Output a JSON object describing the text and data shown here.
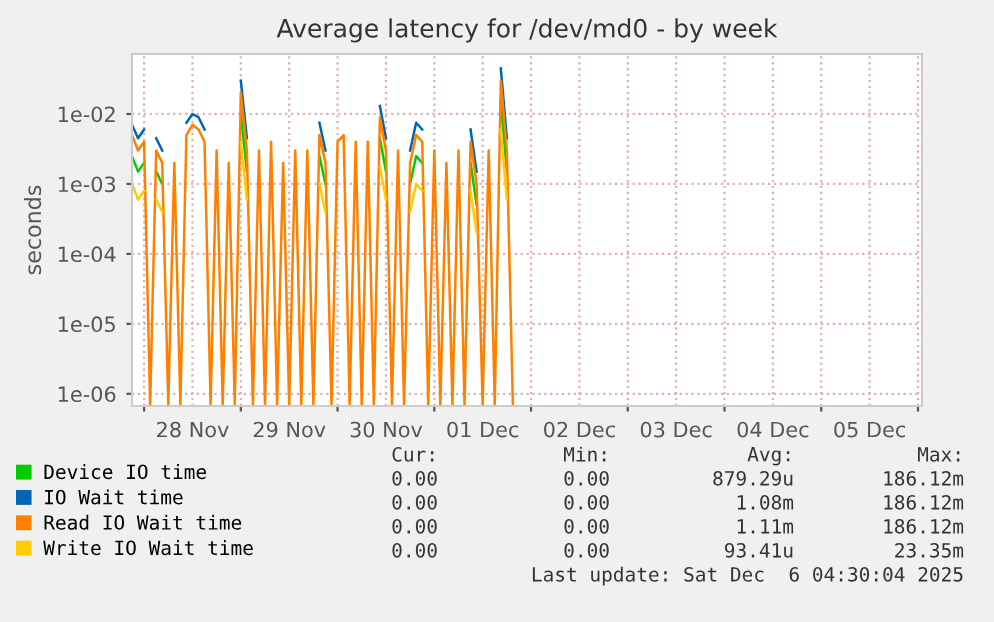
{
  "chart_data": {
    "type": "line",
    "title": "Average latency for /dev/md0 - by week",
    "ylabel": "seconds",
    "log": true,
    "grid": true,
    "legend": "bottom",
    "marker": "none",
    "line_style": "solid",
    "xlim": [
      "2025-11-27T21:00",
      "2025-12-06T01:00"
    ],
    "xticks": [
      {
        "value": "2025-11-28T00:00",
        "label": null
      },
      {
        "value": "2025-11-28T12:00",
        "label": "28 Nov"
      },
      {
        "value": "2025-11-29T00:00",
        "label": null
      },
      {
        "value": "2025-11-29T12:00",
        "label": "29 Nov"
      },
      {
        "value": "2025-11-30T00:00",
        "label": null
      },
      {
        "value": "2025-11-30T12:00",
        "label": "30 Nov"
      },
      {
        "value": "2025-12-01T00:00",
        "label": null
      },
      {
        "value": "2025-12-01T12:00",
        "label": "01 Dec"
      },
      {
        "value": "2025-12-02T00:00",
        "label": null
      },
      {
        "value": "2025-12-02T12:00",
        "label": "02 Dec"
      },
      {
        "value": "2025-12-03T00:00",
        "label": null
      },
      {
        "value": "2025-12-03T12:00",
        "label": "03 Dec"
      },
      {
        "value": "2025-12-04T00:00",
        "label": null
      },
      {
        "value": "2025-12-04T12:00",
        "label": "04 Dec"
      },
      {
        "value": "2025-12-05T00:00",
        "label": null
      },
      {
        "value": "2025-12-05T12:00",
        "label": "05 Dec"
      },
      {
        "value": "2025-12-06T00:00",
        "label": null
      }
    ],
    "ylim": [
      6.7e-07,
      0.072
    ],
    "yticks": [
      {
        "value": 1e-06,
        "label": "1e-06"
      },
      {
        "value": 1e-05,
        "label": "1e-05"
      },
      {
        "value": 0.0001,
        "label": "1e-04"
      },
      {
        "value": 0.001,
        "label": "1e-03"
      },
      {
        "value": 0.01,
        "label": "1e-02"
      }
    ],
    "x": [
      "2025-11-27T21:00",
      "2025-11-27T22:30",
      "2025-11-28T00:00",
      "2025-11-28T01:30",
      "2025-11-28T03:00",
      "2025-11-28T04:30",
      "2025-11-28T06:00",
      "2025-11-28T07:30",
      "2025-11-28T09:00",
      "2025-11-28T10:30",
      "2025-11-28T12:00",
      "2025-11-28T13:30",
      "2025-11-28T15:00",
      "2025-11-28T16:30",
      "2025-11-28T18:00",
      "2025-11-28T19:30",
      "2025-11-28T21:00",
      "2025-11-28T22:30",
      "2025-11-29T00:00",
      "2025-11-29T01:30",
      "2025-11-29T03:00",
      "2025-11-29T04:30",
      "2025-11-29T06:00",
      "2025-11-29T07:30",
      "2025-11-29T09:00",
      "2025-11-29T10:30",
      "2025-11-29T12:00",
      "2025-11-29T13:30",
      "2025-11-29T15:00",
      "2025-11-29T16:30",
      "2025-11-29T18:00",
      "2025-11-29T19:30",
      "2025-11-29T21:00",
      "2025-11-29T22:30",
      "2025-11-30T00:00",
      "2025-11-30T01:30",
      "2025-11-30T03:00",
      "2025-11-30T04:30",
      "2025-11-30T06:00",
      "2025-11-30T07:30",
      "2025-11-30T09:00",
      "2025-11-30T10:30",
      "2025-11-30T12:00",
      "2025-11-30T13:30",
      "2025-11-30T15:00",
      "2025-11-30T16:30",
      "2025-11-30T18:00",
      "2025-11-30T19:30",
      "2025-11-30T21:00",
      "2025-11-30T22:30",
      "2025-12-01T00:00",
      "2025-12-01T01:30",
      "2025-12-01T03:00",
      "2025-12-01T04:30",
      "2025-12-01T06:00",
      "2025-12-01T07:30",
      "2025-12-01T09:00",
      "2025-12-01T10:30",
      "2025-12-01T12:00",
      "2025-12-01T13:30",
      "2025-12-01T15:00",
      "2025-12-01T16:30",
      "2025-12-01T18:00",
      "2025-12-01T19:30"
    ],
    "series": [
      {
        "name": "Device IO time",
        "color": "#00cc00",
        "values": [
          0.0025,
          0.0015,
          0.002,
          null,
          0.0015,
          0.001,
          null,
          null,
          null,
          null,
          null,
          null,
          null,
          null,
          null,
          null,
          null,
          null,
          0.01,
          0.0015,
          null,
          null,
          null,
          null,
          null,
          null,
          null,
          null,
          null,
          null,
          null,
          0.0025,
          0.001,
          null,
          null,
          null,
          null,
          null,
          null,
          null,
          null,
          0.0045,
          0.0015,
          null,
          null,
          null,
          0.001,
          0.0025,
          0.002,
          null,
          null,
          null,
          null,
          null,
          null,
          null,
          0.002,
          0.0005,
          null,
          null,
          null,
          0.015,
          0.0015,
          null
        ]
      },
      {
        "name": "IO Wait time",
        "color": "#0066b3",
        "values": [
          0.007,
          0.0045,
          0.006,
          null,
          0.0045,
          0.003,
          null,
          null,
          null,
          0.0075,
          0.01,
          0.009,
          0.006,
          null,
          null,
          null,
          null,
          null,
          0.03,
          0.0045,
          null,
          null,
          null,
          null,
          null,
          null,
          null,
          null,
          null,
          null,
          null,
          0.0075,
          0.003,
          null,
          null,
          null,
          null,
          null,
          null,
          null,
          null,
          0.013,
          0.0045,
          null,
          null,
          null,
          0.003,
          0.0075,
          0.006,
          null,
          null,
          null,
          null,
          null,
          null,
          null,
          0.006,
          0.0015,
          null,
          null,
          null,
          0.045,
          0.0045,
          null
        ]
      },
      {
        "name": "Read IO Wait time",
        "color": "#ff8000",
        "values": [
          0.005,
          0.003,
          0.004,
          7e-07,
          0.003,
          0.002,
          7e-07,
          0.002,
          7e-07,
          0.005,
          0.007,
          0.006,
          0.004,
          7e-07,
          0.003,
          7e-07,
          0.002,
          7e-07,
          0.02,
          0.003,
          7e-07,
          0.003,
          7e-07,
          0.004,
          7e-07,
          0.002,
          7e-07,
          0.003,
          7e-07,
          0.003,
          7e-07,
          0.005,
          0.002,
          7e-07,
          0.004,
          0.005,
          7e-07,
          0.004,
          7e-07,
          0.004,
          7e-07,
          0.009,
          0.003,
          7e-07,
          0.003,
          7e-07,
          0.002,
          0.005,
          0.004,
          7e-07,
          0.003,
          7e-07,
          0.002,
          7e-07,
          0.003,
          7e-07,
          0.004,
          0.001,
          7e-07,
          0.003,
          7e-07,
          0.03,
          0.003,
          7e-07
        ]
      },
      {
        "name": "Write IO Wait time",
        "color": "#ffcc00",
        "values": [
          0.001,
          0.0006,
          0.0008,
          null,
          0.0006,
          0.0004,
          null,
          null,
          null,
          null,
          null,
          null,
          null,
          null,
          null,
          null,
          null,
          null,
          0.004,
          0.0006,
          null,
          null,
          null,
          null,
          null,
          null,
          null,
          null,
          null,
          null,
          null,
          0.001,
          0.0004,
          null,
          null,
          null,
          null,
          null,
          null,
          null,
          null,
          0.0018,
          0.0006,
          null,
          null,
          null,
          0.0004,
          0.001,
          0.0008,
          null,
          null,
          null,
          null,
          null,
          null,
          null,
          0.0008,
          0.0002,
          null,
          null,
          null,
          0.006,
          0.0006,
          null
        ]
      }
    ],
    "annotations": [
      "Cur:",
      "Min:",
      "Avg:",
      "Max:",
      "0.00",
      "0.00",
      "879.29u",
      "186.12m",
      "0.00",
      "0.00",
      "1.08m",
      "186.12m",
      "0.00",
      "0.00",
      "1.11m",
      "186.12m",
      "0.00",
      "0.00",
      "93.41u",
      "23.35m",
      "Last update: Sat Dec  6 04:30:04 2025"
    ]
  }
}
